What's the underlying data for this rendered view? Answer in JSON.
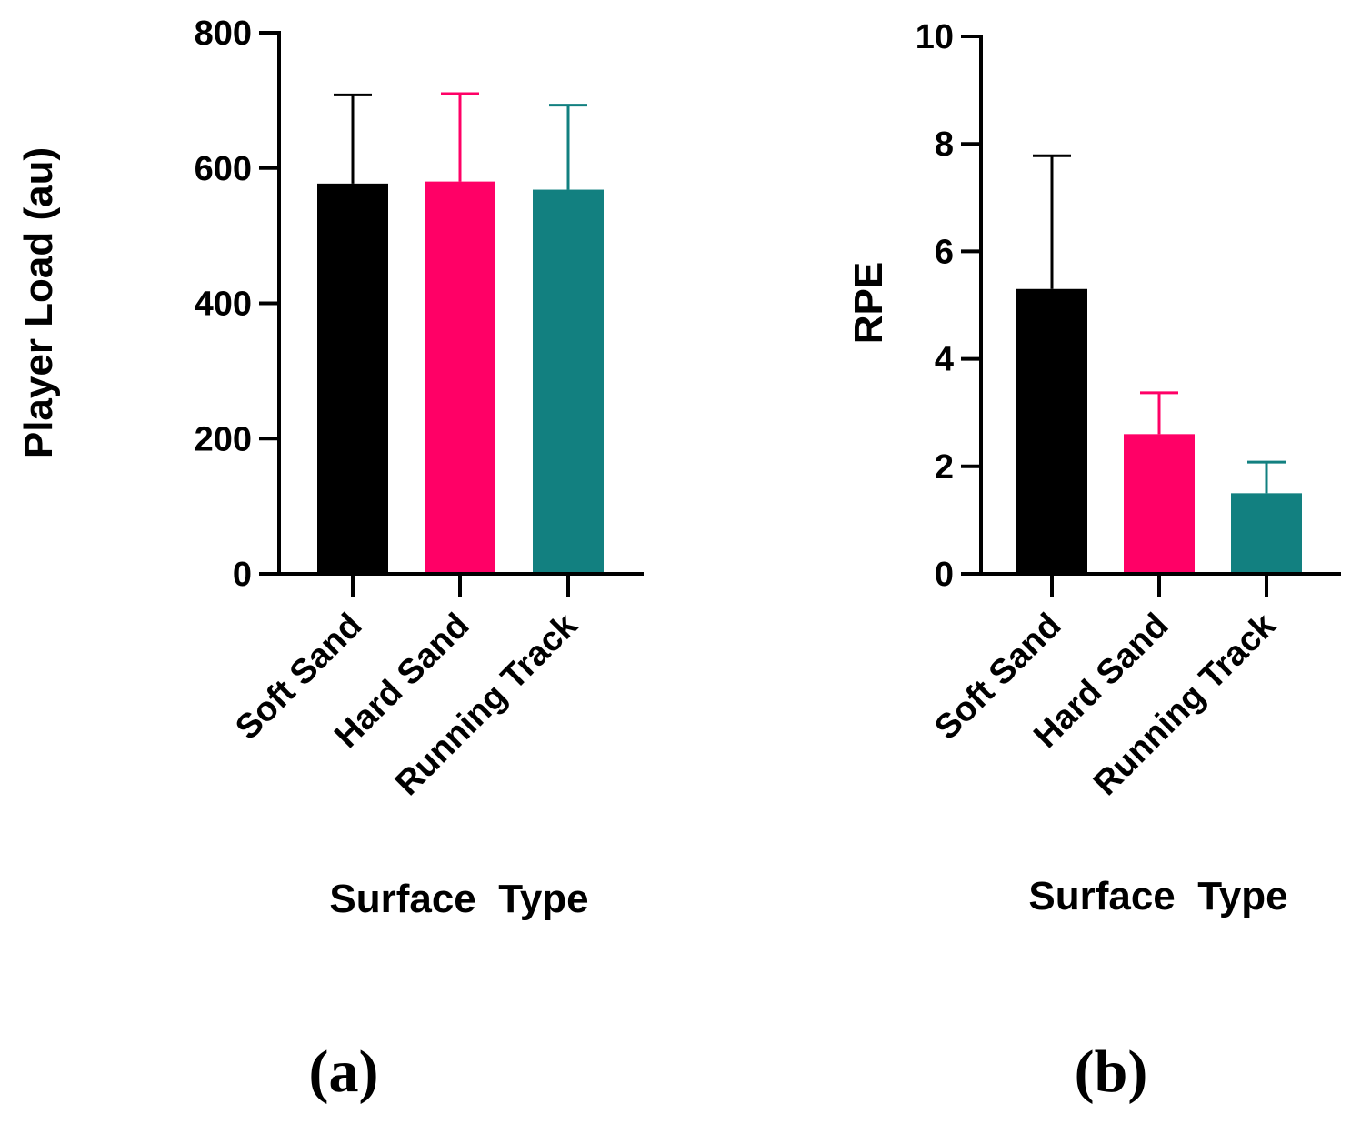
{
  "chart_data": [
    {
      "type": "bar",
      "categories": [
        "Soft Sand",
        "Hard Sand",
        "Running Track"
      ],
      "values": [
        577,
        580,
        568
      ],
      "error_upper": [
        708,
        710,
        693
      ],
      "colors": [
        "#000000",
        "#ff0066",
        "#128080"
      ],
      "ylabel": "Player Load (au)",
      "xlabel": "Surface  Type",
      "ylim": [
        0,
        800
      ],
      "yticks": [
        "0",
        "200",
        "400",
        "600",
        "800"
      ],
      "ytick_values": [
        0,
        200,
        400,
        600,
        800
      ],
      "grid": false,
      "panel_label": "(a)"
    },
    {
      "type": "bar",
      "categories": [
        "Soft Sand",
        "Hard Sand",
        "Running Track"
      ],
      "values": [
        5.3,
        2.6,
        1.5
      ],
      "error_upper": [
        7.78,
        3.37,
        2.08
      ],
      "colors": [
        "#000000",
        "#ff0066",
        "#128080"
      ],
      "ylabel": "RPE",
      "xlabel": "Surface  Type",
      "ylim": [
        0,
        10
      ],
      "yticks": [
        "0",
        "2",
        "4",
        "6",
        "8",
        "10"
      ],
      "ytick_values": [
        0,
        2,
        4,
        6,
        8,
        10
      ],
      "grid": false,
      "panel_label": "(b)"
    }
  ]
}
